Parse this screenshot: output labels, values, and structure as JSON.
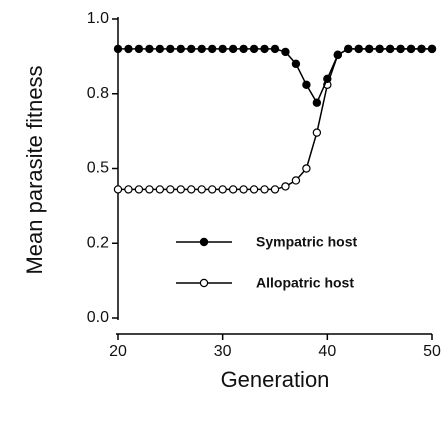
{
  "chart_data": {
    "type": "line",
    "xlabel": "Generation",
    "ylabel": "Mean parasite fitness",
    "x": [
      20,
      21,
      22,
      23,
      24,
      25,
      26,
      27,
      28,
      29,
      30,
      31,
      32,
      33,
      34,
      35,
      36,
      37,
      38,
      39,
      40,
      41,
      42,
      43,
      44,
      45,
      46,
      47,
      48,
      49,
      50
    ],
    "series": [
      {
        "name": "Sympatric host",
        "color": "#000000",
        "marker": "filled",
        "values": [
          0.9,
          0.9,
          0.9,
          0.9,
          0.9,
          0.9,
          0.9,
          0.9,
          0.9,
          0.9,
          0.9,
          0.9,
          0.9,
          0.9,
          0.9,
          0.9,
          0.89,
          0.85,
          0.78,
          0.72,
          0.8,
          0.88,
          0.9,
          0.9,
          0.9,
          0.9,
          0.9,
          0.9,
          0.9,
          0.9,
          0.9
        ]
      },
      {
        "name": "Allopatric host",
        "color": "#000000",
        "marker": "open",
        "values": [
          0.43,
          0.43,
          0.43,
          0.43,
          0.43,
          0.43,
          0.43,
          0.43,
          0.43,
          0.43,
          0.43,
          0.43,
          0.43,
          0.43,
          0.43,
          0.43,
          0.44,
          0.46,
          0.5,
          0.62,
          0.78,
          0.88,
          0.9,
          0.9,
          0.9,
          0.9,
          0.9,
          0.9,
          0.9,
          0.9,
          0.9
        ]
      }
    ],
    "xlim": [
      20,
      50
    ],
    "xticks": [
      20,
      30,
      40,
      50
    ],
    "ylim": [
      0,
      1
    ],
    "yticks": [
      {
        "value": 0,
        "label": "0.0"
      },
      {
        "value": 0.25,
        "label": "0.2"
      },
      {
        "value": 0.5,
        "label": "0.5"
      },
      {
        "value": 0.75,
        "label": "0.8"
      },
      {
        "value": 1,
        "label": "1.0"
      }
    ],
    "legend": "lower-right",
    "grid": false
  }
}
